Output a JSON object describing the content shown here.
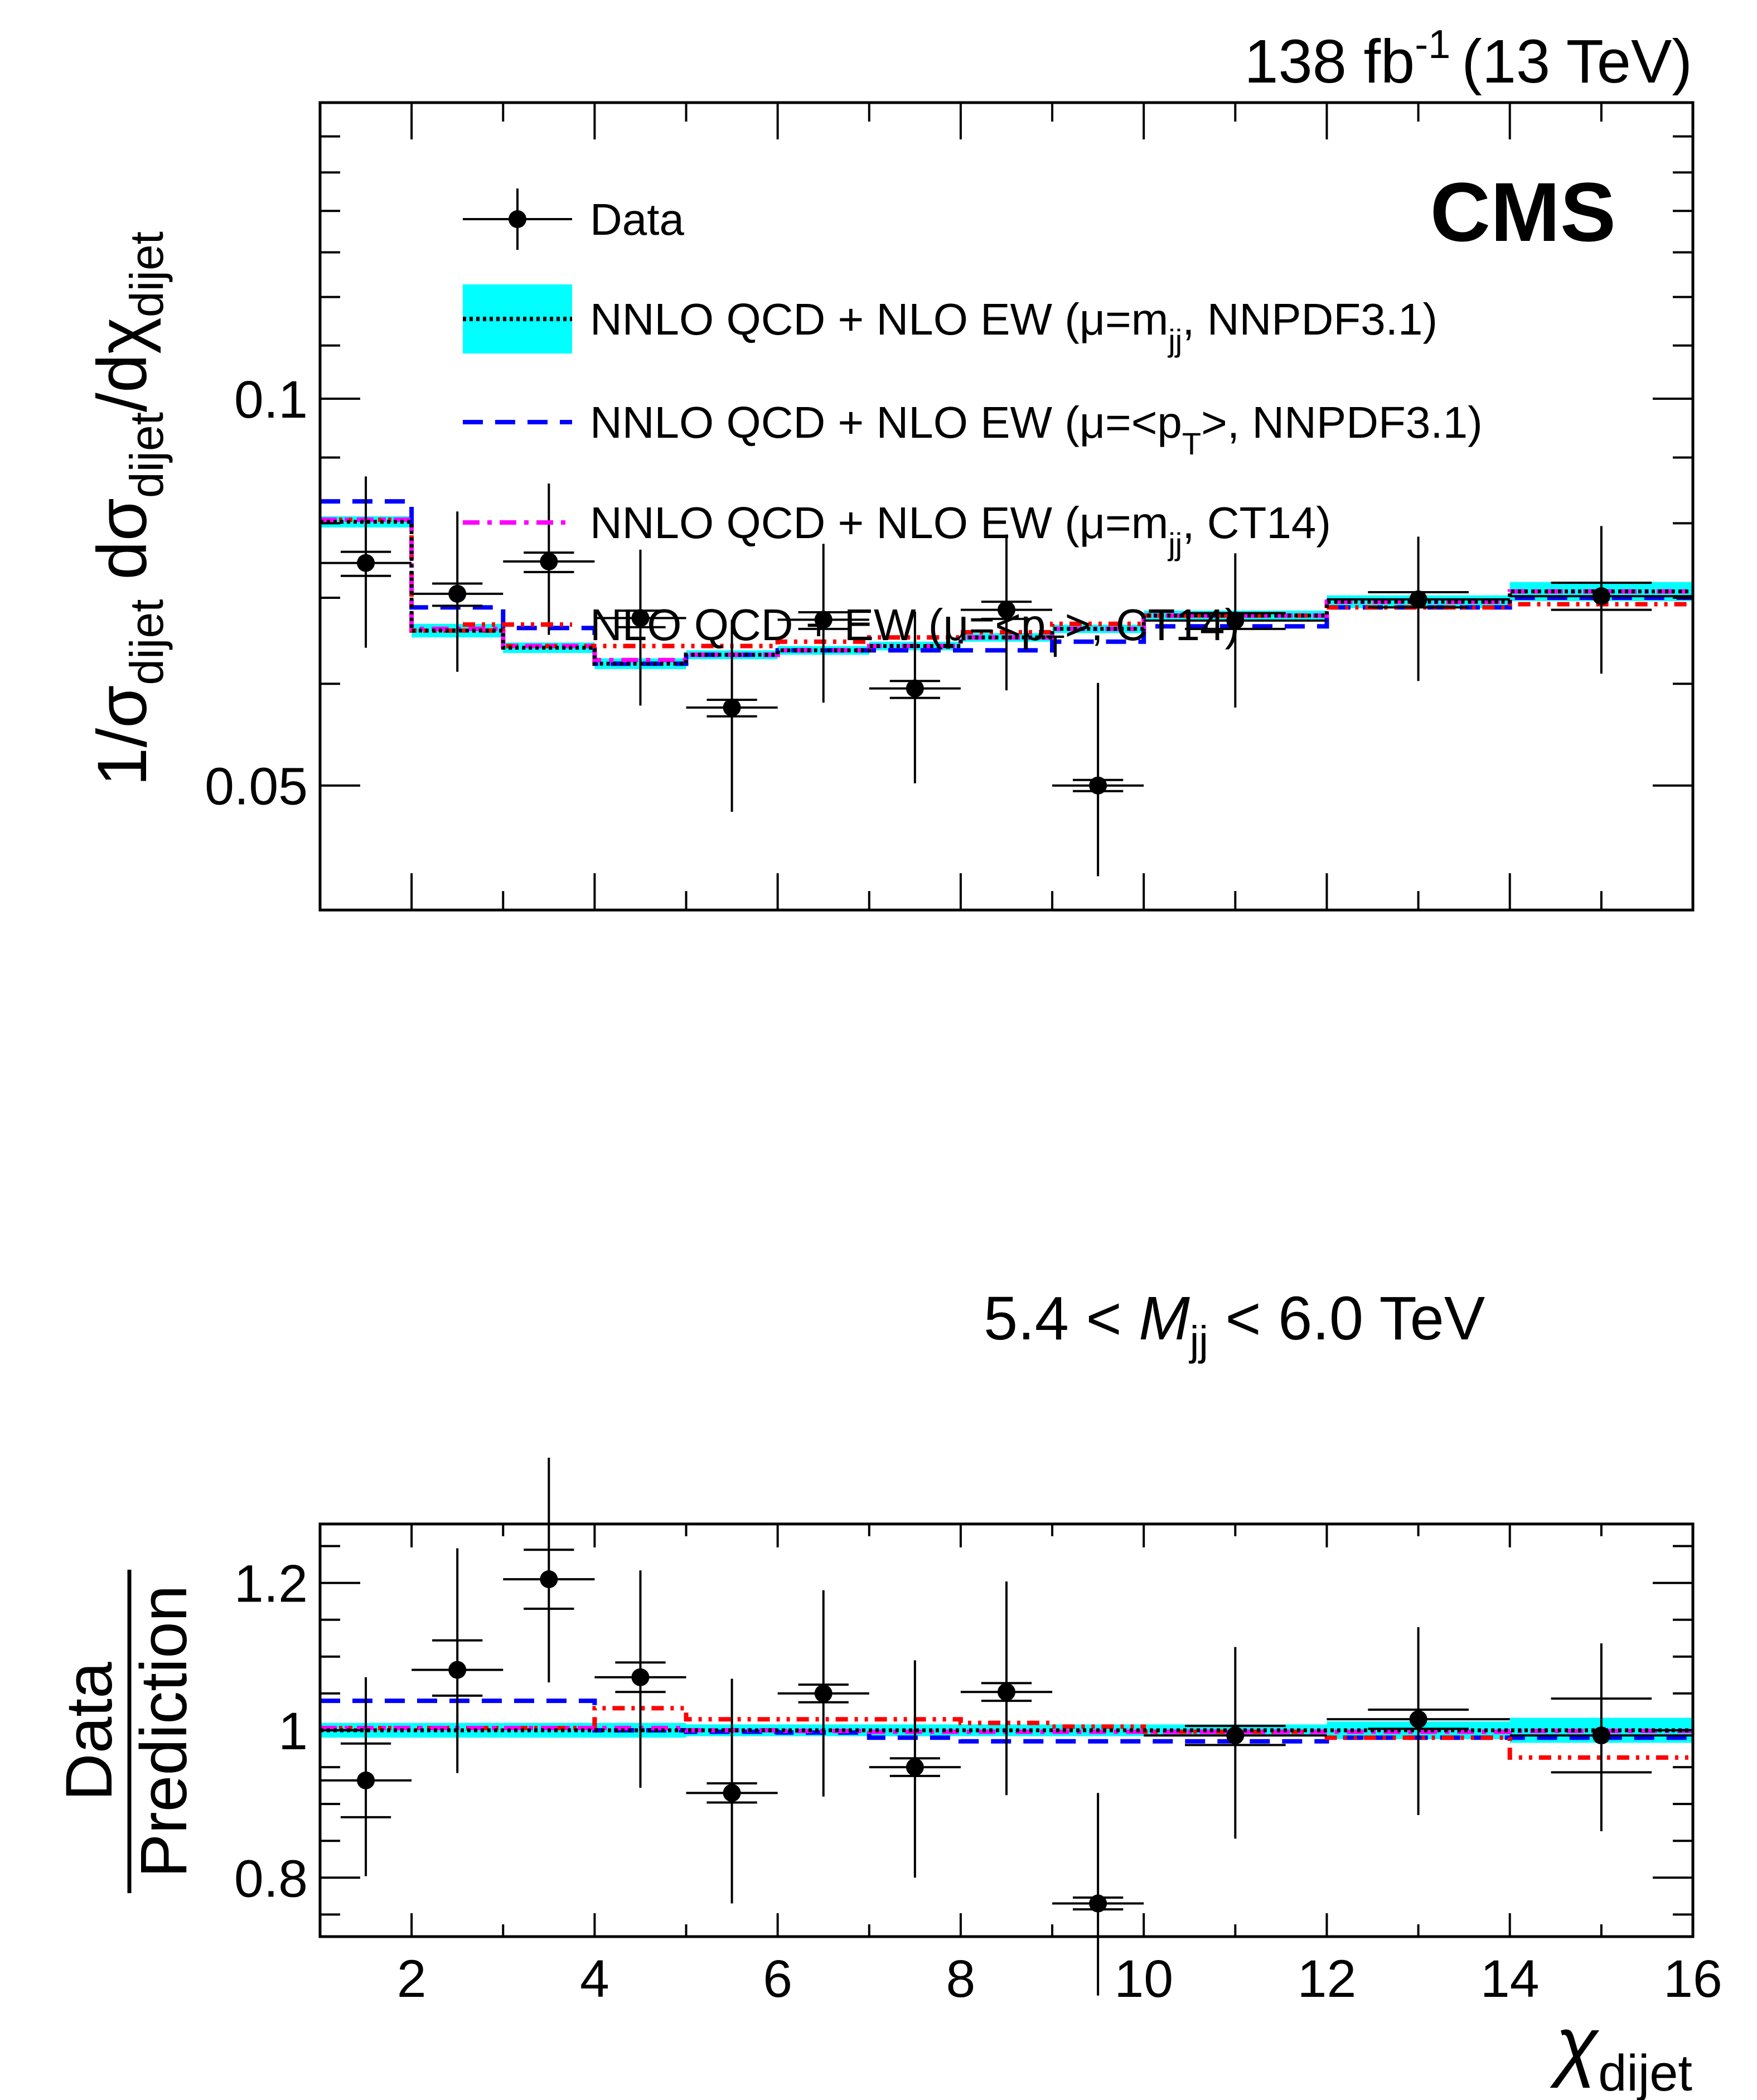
{
  "chart_data": {
    "type": "line",
    "header": {
      "lumi": "138 fb",
      "lumi_sup": "-1",
      "energy": "(13 TeV)",
      "experiment": "CMS"
    },
    "bin_edges": [
      1,
      2,
      3,
      4,
      5,
      6,
      7,
      8,
      9,
      10,
      12,
      14,
      16
    ],
    "x_axis": {
      "label_main": "χ",
      "label_sub": "dijet",
      "range": [
        1,
        16
      ],
      "ticks": [
        2,
        4,
        6,
        8,
        10,
        12,
        14,
        16
      ],
      "tick_labels": [
        "2",
        "4",
        "6",
        "8",
        "10",
        "12",
        "14",
        "16"
      ]
    },
    "main_panel": {
      "scale": "log",
      "ylim": [
        0.04,
        0.17
      ],
      "y_label": {
        "p1": "1/σ",
        "s1": "dijet",
        "p2": " dσ",
        "s2": "dijet",
        "p3": "/dχ",
        "s3": "dijet"
      },
      "y_ticks": [
        0.05,
        0.1
      ],
      "y_tick_labels": [
        "0.05",
        "0.1"
      ],
      "annotation": {
        "pre": "5.4 < ",
        "var": "M",
        "sub": "jj",
        "post": " < 6.0 TeV"
      },
      "data": {
        "x": [
          1.5,
          2.5,
          3.5,
          4.5,
          5.5,
          6.5,
          7.5,
          8.5,
          9.5,
          11,
          13,
          15
        ],
        "y": [
          0.0745,
          0.0705,
          0.0747,
          0.0675,
          0.0575,
          0.0673,
          0.0595,
          0.0685,
          0.05,
          0.0672,
          0.0698,
          0.0702
        ],
        "err_total_low": [
          0.0105,
          0.0092,
          0.0092,
          0.0098,
          0.0098,
          0.0093,
          0.0093,
          0.0092,
          0.0075,
          0.0097,
          0.0095,
          0.0091
        ],
        "err_total_high": [
          0.0125,
          0.0112,
          0.0112,
          0.0088,
          0.0098,
          0.0098,
          0.0088,
          0.0099,
          0.0101,
          0.0086,
          0.0083,
          0.0094
        ],
        "err_stat_low": [
          0.0017,
          0.0015,
          0.0014,
          0.0011,
          0.0009,
          0.0011,
          0.001,
          0.0011,
          0.0005,
          0.001,
          0.001,
          0.0017
        ],
        "err_stat_high": [
          0.0015,
          0.0013,
          0.0012,
          0.0009,
          0.0008,
          0.0009,
          0.0008,
          0.001,
          0.0005,
          0.0009,
          0.0009,
          0.0017
        ]
      },
      "series": [
        {
          "name": "NNLO QCD + NLO EW (μ=m_jj, NNPDF3.1)",
          "color": "#000000",
          "band_color": "#00ffff",
          "values": [
            0.0802,
            0.066,
            0.064,
            0.0622,
            0.0632,
            0.0637,
            0.0642,
            0.0652,
            0.0662,
            0.0678,
            0.0695,
            0.0708
          ],
          "band_half": [
            0.0008,
            0.0008,
            0.0006,
            0.0006,
            0.0005,
            0.0005,
            0.0005,
            0.0005,
            0.0005,
            0.0006,
            0.0008,
            0.0012
          ]
        },
        {
          "name": "NNLO QCD + NLO EW (μ=<p_T>, NNPDF3.1)",
          "color": "#0000ff",
          "values": [
            0.0832,
            0.0688,
            0.0663,
            0.0622,
            0.0632,
            0.0637,
            0.0637,
            0.0637,
            0.0647,
            0.0665,
            0.0688,
            0.07
          ]
        },
        {
          "name": "NNLO QCD + NLO EW (μ=m_jj, CT14)",
          "color": "#ff00ff",
          "values": [
            0.0805,
            0.0662,
            0.0642,
            0.0626,
            0.0632,
            0.0637,
            0.0642,
            0.0652,
            0.0662,
            0.0678,
            0.0695,
            0.0708
          ]
        },
        {
          "name": "NLO QCD + EW (μ=<p_T>, CT14)",
          "color": "#ff0000",
          "values": [
            0.0805,
            0.066,
            0.0642,
            0.0642,
            0.0642,
            0.0647,
            0.0652,
            0.0658,
            0.0668,
            0.0678,
            0.0688,
            0.0692
          ]
        }
      ]
    },
    "ratio_panel": {
      "scale": "linear",
      "ylim": [
        0.72,
        1.28
      ],
      "y_label": {
        "numerator": "Data",
        "denominator": "Prediction"
      },
      "y_ticks": [
        0.8,
        1.0,
        1.2
      ],
      "y_tick_labels": [
        "0.8",
        "1",
        "1.2"
      ],
      "data": {
        "x": [
          1.5,
          2.5,
          3.5,
          4.5,
          5.5,
          6.5,
          7.5,
          8.5,
          9.5,
          11,
          13,
          15
        ],
        "y": [
          0.932,
          1.082,
          1.205,
          1.072,
          0.915,
          1.05,
          0.95,
          1.052,
          0.765,
          0.993,
          1.015,
          0.993
        ],
        "err_total_low": [
          0.13,
          0.14,
          0.14,
          0.15,
          0.15,
          0.14,
          0.15,
          0.14,
          0.125,
          0.14,
          0.13,
          0.13
        ],
        "err_total_high": [
          0.14,
          0.165,
          0.165,
          0.145,
          0.155,
          0.14,
          0.145,
          0.15,
          0.15,
          0.12,
          0.125,
          0.125
        ],
        "err_stat_low": [
          0.05,
          0.035,
          0.04,
          0.02,
          0.013,
          0.012,
          0.012,
          0.012,
          0.008,
          0.013,
          0.013,
          0.05
        ],
        "err_stat_high": [
          0.05,
          0.04,
          0.04,
          0.02,
          0.013,
          0.012,
          0.012,
          0.012,
          0.008,
          0.013,
          0.013,
          0.05
        ]
      },
      "series": [
        {
          "name": "NNLO QCD + NLO EW (μ=m_jj, NNPDF3.1)",
          "color": "#000000",
          "band_color": "#00ffff",
          "values": [
            1.0,
            1.0,
            1.0,
            1.0,
            1.0,
            1.0,
            1.0,
            1.0,
            1.0,
            1.0,
            1.0,
            1.0
          ],
          "band_half": [
            0.01,
            0.01,
            0.01,
            0.01,
            0.008,
            0.008,
            0.008,
            0.008,
            0.008,
            0.008,
            0.012,
            0.017
          ]
        },
        {
          "name": "NNLO QCD + NLO EW (μ=<p_T>, NNPDF3.1)",
          "color": "#0000ff",
          "values": [
            1.04,
            1.04,
            1.04,
            1.0,
            0.998,
            0.997,
            0.99,
            0.985,
            0.985,
            0.985,
            0.99,
            0.99
          ]
        },
        {
          "name": "NNLO QCD + NLO EW (μ=m_jj, CT14)",
          "color": "#ff00ff",
          "values": [
            1.003,
            1.003,
            1.003,
            1.003,
            1.0,
            0.999,
            0.998,
            0.998,
            0.998,
            0.998,
            0.998,
            0.999
          ]
        },
        {
          "name": "NLO QCD + EW (μ=<p_T>, CT14)",
          "color": "#ff0000",
          "values": [
            1.003,
            1.003,
            1.003,
            1.03,
            1.015,
            1.015,
            1.015,
            1.01,
            1.005,
            0.998,
            0.99,
            0.963
          ]
        }
      ]
    },
    "legend": {
      "placement": "top-left",
      "entries": [
        {
          "kind": "data",
          "pre": "Data"
        },
        {
          "kind": "band",
          "color": "#000000",
          "band_color": "#00ffff",
          "dash": "6 6",
          "pre": "NNLO QCD + NLO EW (μ=m",
          "sub": "jj",
          "post": ", NNPDF3.1)"
        },
        {
          "kind": "line",
          "color": "#0000ff",
          "dash": "36 22",
          "pre": "NNLO QCD + NLO EW (μ=<p",
          "sub": "T",
          "post": ">, NNPDF3.1)"
        },
        {
          "kind": "line",
          "color": "#ff00ff",
          "dash": "30 14 8 14",
          "pre": "NNLO QCD + NLO EW (μ=m",
          "sub": "jj",
          "post": ", CT14)"
        },
        {
          "kind": "line",
          "color": "#ff0000",
          "dash": "22 12 6 12 6 12",
          "pre": "NLO QCD + EW (μ=<p",
          "sub": "T",
          "post": ">, CT14)"
        }
      ]
    }
  }
}
